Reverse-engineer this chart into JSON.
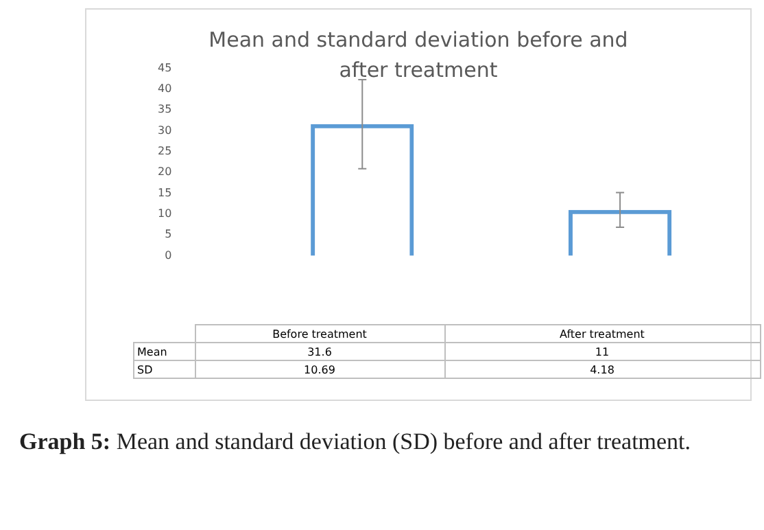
{
  "chart_data": {
    "type": "bar",
    "title": "Mean and standard deviation before and after treatment",
    "categories": [
      "Before treatment",
      "After treatment"
    ],
    "series": [
      {
        "name": "Mean",
        "color": "#5b9bd5",
        "values": [
          31.6,
          11
        ],
        "errors": [
          10.69,
          4.18
        ]
      }
    ],
    "ylim": [
      0,
      45
    ],
    "yticks": [
      0,
      5,
      10,
      15,
      20,
      25,
      30,
      35,
      40,
      45
    ],
    "grid": false,
    "legend": false,
    "data_labels": true,
    "annotations": [
      "SD",
      "10.69",
      "4.18",
      "Graph 5: Mean and standard deviation (SD) before and after treatment."
    ]
  }
}
